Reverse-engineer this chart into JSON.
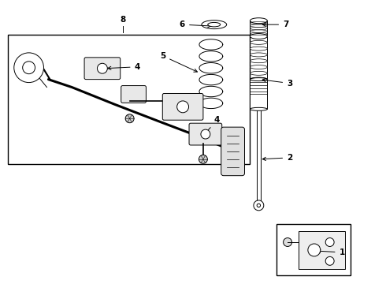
{
  "bg_color": "#ffffff",
  "line_color": "#000000",
  "label_color": "#000000",
  "fig_width": 4.9,
  "fig_height": 3.6,
  "dpi": 100
}
